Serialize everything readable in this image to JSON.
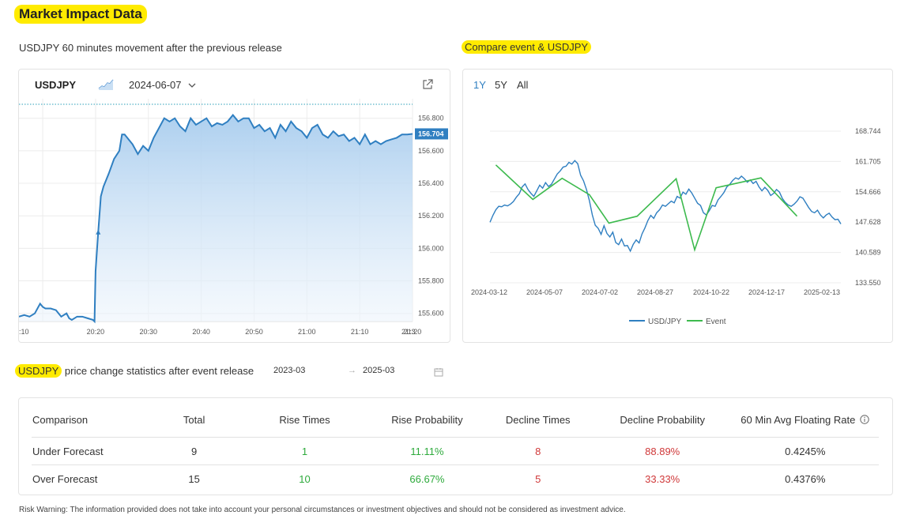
{
  "page": {
    "title": "Market Impact Data",
    "left_subtitle": "USDJPY 60 minutes movement after the previous release",
    "right_subtitle": "Compare event & USDJPY",
    "stats_title_prefix": "USDJPY",
    "stats_title_rest": " price change statistics after event release",
    "date_from": "2023-03",
    "date_arrow": "→",
    "date_to": "2025-03",
    "risk_warning": "Risk Warning: The information provided does not take into account your personal circumstances or investment objectives and should not be considered as investment advice."
  },
  "left_panel": {
    "symbol": "USDJPY",
    "date": "2024-06-07",
    "chart_icon": "area-chart-icon",
    "dropdown_icon": "chevron-down-icon",
    "external_icon": "external-link-icon"
  },
  "right_panel": {
    "tabs": [
      "1Y",
      "5Y",
      "All"
    ],
    "active_tab": 0,
    "legend": [
      {
        "label": "USD/JPY",
        "color": "#2f7fc1"
      },
      {
        "label": "Event",
        "color": "#3dba4e"
      }
    ]
  },
  "chart_data": [
    {
      "type": "area",
      "x_tick_labels": [
        ":10",
        "20:20",
        "20:30",
        "20:40",
        "20:50",
        "21:00",
        "21:10",
        "21:20",
        "21:3"
      ],
      "y_tick_labels": [
        "156.800",
        "156.600",
        "156.400",
        "156.200",
        "156.000",
        "155.800",
        "155.600"
      ],
      "ylim": [
        155.55,
        156.92
      ],
      "last_value_label": "156.704",
      "color": "#2f7fc1",
      "x_minutes": [
        -14.5,
        -13.5,
        -12.5,
        -11.5,
        -10.5,
        -10,
        -9.5,
        -8.5,
        -7.5,
        -6.5,
        -5.5,
        -5,
        -4.5,
        -3.5,
        -2.5,
        -1.5,
        -0.5,
        -0.2,
        0,
        0.5,
        1,
        1.5,
        2.5,
        3.5,
        4.5,
        5,
        5.5,
        6,
        7,
        8,
        9,
        10,
        11,
        12,
        13,
        14,
        15,
        16,
        17,
        18,
        19,
        20,
        21,
        22,
        23,
        24,
        25,
        26,
        27,
        28,
        29,
        30,
        31,
        32,
        33,
        34,
        35,
        36,
        37,
        38,
        39,
        40,
        41,
        42,
        43,
        44,
        45,
        46,
        47,
        48,
        49,
        50,
        51,
        52,
        53,
        54,
        55,
        56,
        57,
        58,
        59,
        60
      ],
      "values": [
        155.58,
        155.59,
        155.58,
        155.6,
        155.66,
        155.64,
        155.63,
        155.63,
        155.62,
        155.58,
        155.6,
        155.57,
        155.56,
        155.58,
        155.58,
        155.57,
        155.56,
        155.55,
        155.86,
        156.1,
        156.32,
        156.38,
        156.46,
        156.55,
        156.6,
        156.7,
        156.7,
        156.68,
        156.64,
        156.58,
        156.63,
        156.6,
        156.68,
        156.74,
        156.8,
        156.78,
        156.8,
        156.75,
        156.72,
        156.8,
        156.76,
        156.78,
        156.8,
        156.75,
        156.77,
        156.76,
        156.78,
        156.82,
        156.78,
        156.8,
        156.8,
        156.74,
        156.76,
        156.72,
        156.74,
        156.68,
        156.76,
        156.72,
        156.78,
        156.74,
        156.72,
        156.68,
        156.74,
        156.76,
        156.7,
        156.68,
        156.72,
        156.69,
        156.7,
        156.66,
        156.68,
        156.64,
        156.7,
        156.64,
        156.66,
        156.64,
        156.66,
        156.67,
        156.68,
        156.7,
        156.7,
        156.704
      ]
    },
    {
      "type": "line",
      "x_tick_labels": [
        "2024-03-12",
        "2024-05-07",
        "2024-07-02",
        "2024-08-27",
        "2024-10-22",
        "2024-12-17",
        "2025-02-13"
      ],
      "y_tick_labels": [
        "168.744",
        "161.705",
        "154.666",
        "147.628",
        "140.589",
        "133.550"
      ],
      "ylim": [
        133.55,
        168.744
      ],
      "series": [
        {
          "name": "USD/JPY",
          "color": "#2f7fc1",
          "x_days": [
            0,
            3,
            6,
            9,
            12,
            15,
            18,
            21,
            24,
            27,
            30,
            33,
            36,
            39,
            42,
            45,
            48,
            51,
            54,
            57,
            60,
            63,
            66,
            69,
            72,
            75,
            78,
            81,
            84,
            87,
            90,
            93,
            96,
            99,
            102,
            105,
            108,
            111,
            114,
            117,
            120,
            123,
            126,
            129,
            132,
            135,
            138,
            141,
            144,
            147,
            150,
            153,
            156,
            159,
            162,
            165,
            168,
            171,
            174,
            177,
            180,
            183,
            186,
            189,
            192,
            195,
            198,
            201,
            204,
            207,
            210,
            213,
            216,
            219,
            222,
            225,
            228,
            231,
            234,
            237,
            240,
            243,
            246,
            249,
            252,
            255,
            258,
            261,
            264,
            267,
            270,
            273,
            276,
            279,
            282,
            285,
            288,
            291,
            294,
            297,
            300,
            303,
            306,
            309,
            312,
            315,
            318,
            321,
            324,
            327,
            330,
            333,
            336,
            339,
            342,
            345,
            348,
            351,
            354,
            357,
            360
          ],
          "values": [
            147.6,
            149.2,
            150.5,
            151.3,
            151.2,
            151.6,
            151.4,
            151.8,
            152.4,
            153.4,
            154.2,
            155.8,
            156.5,
            155.2,
            154.3,
            153.6,
            154.9,
            156.2,
            155.5,
            156.8,
            155.9,
            156.4,
            157.6,
            158.8,
            159.5,
            160.4,
            160.6,
            161.5,
            161.1,
            161.9,
            161.2,
            158.5,
            157.2,
            155.2,
            152.6,
            149.3,
            146.9,
            146.2,
            144.8,
            146.8,
            145.0,
            144.2,
            145.3,
            142.9,
            142.4,
            143.7,
            142.1,
            142.2,
            140.9,
            142.5,
            143.5,
            142.8,
            144.9,
            146.3,
            148.0,
            149.2,
            148.5,
            149.8,
            150.5,
            151.6,
            151.3,
            151.9,
            152.5,
            152.1,
            153.6,
            153.2,
            154.6,
            154.1,
            155.3,
            154.4,
            153.2,
            152.0,
            151.5,
            149.8,
            149.3,
            150.3,
            151.5,
            151.3,
            152.8,
            153.6,
            154.5,
            155.8,
            156.4,
            157.3,
            157.9,
            157.6,
            158.3,
            157.7,
            156.9,
            157.4,
            156.6,
            157.1,
            155.8,
            154.9,
            155.7,
            155.0,
            153.8,
            154.3,
            155.2,
            154.6,
            153.1,
            152.2,
            151.6,
            151.3,
            151.8,
            152.5,
            153.5,
            153.2,
            152.1,
            151.0,
            150.1,
            149.8,
            150.4,
            149.3,
            148.6,
            149.3,
            149.7,
            148.8,
            148.2,
            148.3,
            147.2
          ],
          "marker_note": ""
        },
        {
          "name": "Event",
          "color": "#3dba4e",
          "x_days": [
            6,
            44,
            74,
            102,
            122,
            151,
            191,
            210,
            232,
            278,
            315
          ],
          "values": [
            160.9,
            152.9,
            157.8,
            154.0,
            147.4,
            149.0,
            157.7,
            141.2,
            155.6,
            157.9,
            149.0
          ]
        }
      ]
    }
  ],
  "stats_table": {
    "info_icon": "info-icon",
    "headers": [
      "Comparison",
      "Total",
      "Rise Times",
      "Rise Probability",
      "Decline Times",
      "Decline Probability",
      "60 Min Avg Floating Rate"
    ],
    "rows": [
      [
        "Under Forecast",
        "9",
        "1",
        "11.11%",
        "8",
        "88.89%",
        "0.4245%"
      ],
      [
        "Over Forecast",
        "15",
        "10",
        "66.67%",
        "5",
        "33.33%",
        "0.4376%"
      ]
    ]
  }
}
